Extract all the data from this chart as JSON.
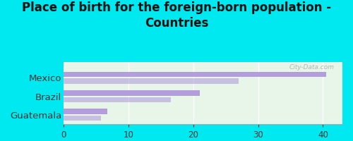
{
  "title": "Place of birth for the foreign-born population -\nCountries",
  "categories": [
    "Mexico",
    "Brazil",
    "Guatemala"
  ],
  "values1": [
    40.5,
    21.0,
    6.8
  ],
  "values2": [
    27.0,
    16.5,
    5.8
  ],
  "bar_color": "#b39ddb",
  "bar_alpha1": 1.0,
  "bar_alpha2": 0.6,
  "background_outer": "#00e8f0",
  "background_inner": "#e8f5e9",
  "xlim": [
    0,
    43
  ],
  "xticks": [
    0,
    10,
    20,
    30,
    40
  ],
  "title_fontsize": 12,
  "label_fontsize": 9.5,
  "tick_fontsize": 8.5,
  "bar_height": 0.28,
  "bar_gap": 0.08,
  "watermark": "City-Data.com"
}
